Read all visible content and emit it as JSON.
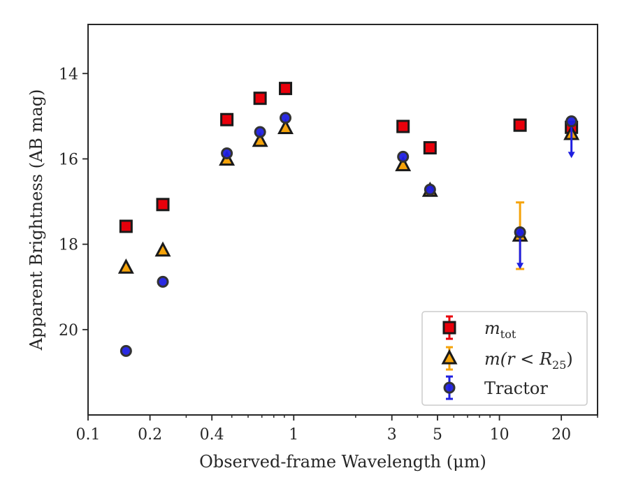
{
  "chart_data": {
    "type": "scatter",
    "xlabel": "Observed-frame Wavelength (μm)",
    "ylabel": "Apparent Brightness (AB mag)",
    "xscale": "log",
    "xlim": [
      0.1,
      30
    ],
    "ylim": [
      22.0,
      12.85
    ],
    "y_inverted": true,
    "grid": false,
    "legend_position": "lower-right",
    "x_ticks": [
      {
        "value": 0.1,
        "label": "0.1"
      },
      {
        "value": 0.2,
        "label": "0.2"
      },
      {
        "value": 0.4,
        "label": "0.4"
      },
      {
        "value": 1,
        "label": "1"
      },
      {
        "value": 3,
        "label": "3"
      },
      {
        "value": 5,
        "label": "5"
      },
      {
        "value": 10,
        "label": "10"
      },
      {
        "value": 20,
        "label": "20"
      }
    ],
    "y_ticks": [
      {
        "value": 14,
        "label": "14"
      },
      {
        "value": 16,
        "label": "16"
      },
      {
        "value": 18,
        "label": "18"
      },
      {
        "value": 20,
        "label": "20"
      }
    ],
    "series": [
      {
        "name": "m_tot",
        "legend_main": "m",
        "legend_sub": "tot",
        "marker": "square",
        "color": "#e8000b",
        "edge": "#1a1a1a",
        "points": [
          {
            "x": 0.153,
            "y": 17.58
          },
          {
            "x": 0.231,
            "y": 17.07
          },
          {
            "x": 0.473,
            "y": 15.08
          },
          {
            "x": 0.686,
            "y": 14.58
          },
          {
            "x": 0.912,
            "y": 14.35
          },
          {
            "x": 3.4,
            "y": 15.24
          },
          {
            "x": 4.6,
            "y": 15.74
          },
          {
            "x": 12.6,
            "y": 15.21
          },
          {
            "x": 22.4,
            "y": 15.26
          }
        ]
      },
      {
        "name": "m(r < R25)",
        "legend_main": "m(r < R",
        "legend_sub": "25",
        "legend_tail": ")",
        "marker": "triangle",
        "color": "#f5a30a",
        "edge": "#1a1a1a",
        "points": [
          {
            "x": 0.153,
            "y": 18.55
          },
          {
            "x": 0.231,
            "y": 18.15
          },
          {
            "x": 0.473,
            "y": 16.02
          },
          {
            "x": 0.686,
            "y": 15.58
          },
          {
            "x": 0.912,
            "y": 15.28
          },
          {
            "x": 3.4,
            "y": 16.15
          },
          {
            "x": 4.6,
            "y": 16.75
          },
          {
            "x": 12.6,
            "y": 17.8,
            "err_low": 17.02,
            "err_high": 18.58
          },
          {
            "x": 22.4,
            "y": 15.42
          }
        ]
      },
      {
        "name": "Tractor",
        "legend_main": "Tractor",
        "marker": "circle",
        "color": "#1f1fe0",
        "edge": "#333333",
        "points": [
          {
            "x": 0.153,
            "y": 20.5
          },
          {
            "x": 0.231,
            "y": 18.88
          },
          {
            "x": 0.473,
            "y": 15.87
          },
          {
            "x": 0.686,
            "y": 15.37
          },
          {
            "x": 0.912,
            "y": 15.04
          },
          {
            "x": 3.4,
            "y": 15.95
          },
          {
            "x": 4.6,
            "y": 16.72
          },
          {
            "x": 12.6,
            "y": 17.72,
            "upper_limit_arrow_to": 18.55
          },
          {
            "x": 22.4,
            "y": 15.12,
            "upper_limit_arrow_to": 15.95
          }
        ]
      }
    ]
  }
}
